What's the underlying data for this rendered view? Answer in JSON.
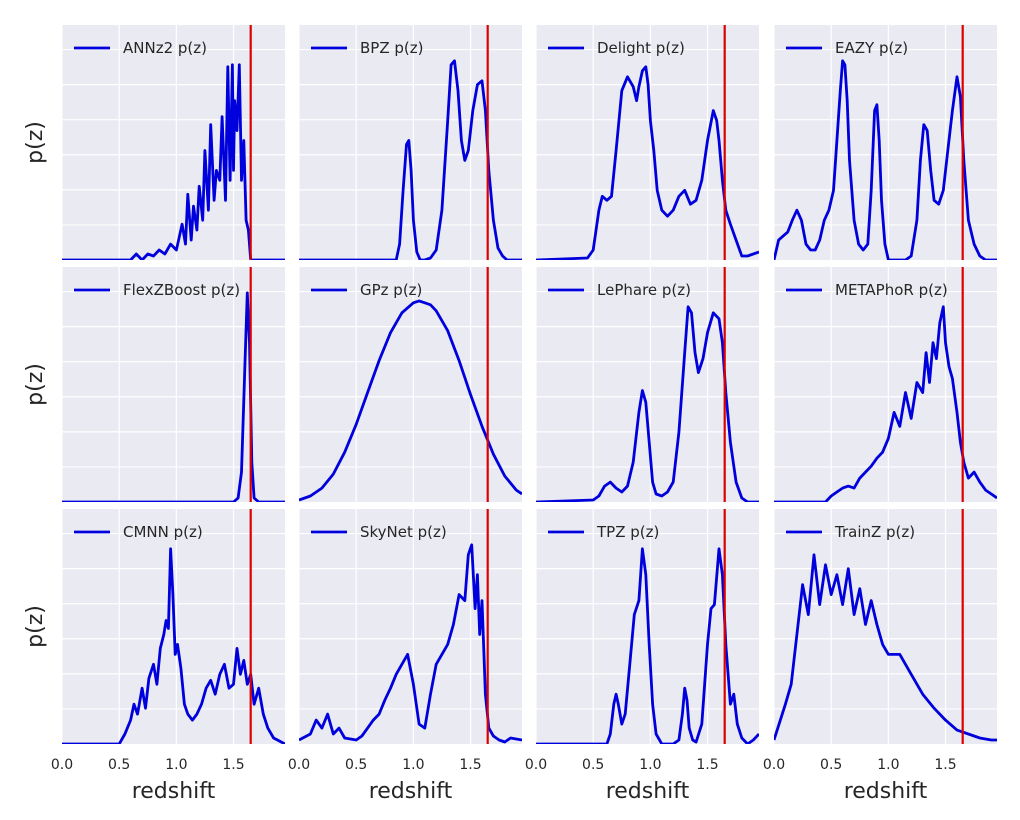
{
  "chart_data": [
    {
      "type": "line",
      "legend": "ANNz2 p(z)",
      "xlim": [
        0,
        1.95
      ],
      "z_true": 1.65,
      "x": [
        0,
        0.6,
        0.65,
        0.7,
        0.75,
        0.8,
        0.85,
        0.9,
        0.95,
        1.0,
        1.05,
        1.08,
        1.1,
        1.13,
        1.15,
        1.18,
        1.2,
        1.23,
        1.25,
        1.28,
        1.3,
        1.33,
        1.35,
        1.38,
        1.4,
        1.43,
        1.45,
        1.47,
        1.49,
        1.5,
        1.51,
        1.53,
        1.55,
        1.57,
        1.59,
        1.61,
        1.63,
        1.65,
        1.7,
        1.95
      ],
      "y": [
        0,
        0,
        0.03,
        0,
        0.03,
        0.02,
        0.05,
        0.03,
        0.08,
        0.05,
        0.18,
        0.08,
        0.33,
        0.1,
        0.27,
        0.15,
        0.37,
        0.2,
        0.55,
        0.25,
        0.68,
        0.3,
        0.45,
        0.4,
        0.72,
        0.3,
        0.97,
        0.4,
        0.98,
        0.45,
        0.8,
        0.65,
        0.98,
        0.4,
        0.6,
        0.2,
        0.15,
        0,
        0,
        0
      ]
    },
    {
      "type": "line",
      "legend": "BPZ p(z)",
      "xlim": [
        0,
        1.95
      ],
      "z_true": 1.65,
      "x": [
        0,
        0.85,
        0.88,
        0.91,
        0.94,
        0.96,
        0.98,
        1.0,
        1.03,
        1.06,
        1.1,
        1.15,
        1.2,
        1.25,
        1.3,
        1.33,
        1.36,
        1.39,
        1.42,
        1.45,
        1.48,
        1.52,
        1.56,
        1.6,
        1.63,
        1.66,
        1.7,
        1.74,
        1.78,
        1.82,
        1.95
      ],
      "y": [
        0,
        0,
        0.08,
        0.35,
        0.58,
        0.6,
        0.45,
        0.2,
        0.04,
        0,
        0,
        0.01,
        0.05,
        0.25,
        0.7,
        0.98,
        1.0,
        0.85,
        0.6,
        0.5,
        0.55,
        0.75,
        0.88,
        0.9,
        0.75,
        0.45,
        0.2,
        0.06,
        0.02,
        0,
        0
      ]
    },
    {
      "type": "line",
      "legend": "Delight p(z)",
      "xlim": [
        0,
        1.95
      ],
      "z_true": 1.65,
      "x": [
        0,
        0.45,
        0.5,
        0.55,
        0.58,
        0.62,
        0.66,
        0.7,
        0.75,
        0.8,
        0.85,
        0.88,
        0.9,
        0.93,
        0.96,
        0.98,
        1.0,
        1.03,
        1.06,
        1.1,
        1.15,
        1.2,
        1.25,
        1.3,
        1.35,
        1.4,
        1.45,
        1.5,
        1.55,
        1.58,
        1.6,
        1.63,
        1.66,
        1.7,
        1.75,
        1.8,
        1.85,
        1.95
      ],
      "y": [
        0,
        0.01,
        0.05,
        0.25,
        0.32,
        0.3,
        0.32,
        0.55,
        0.85,
        0.92,
        0.87,
        0.8,
        0.87,
        0.95,
        0.97,
        0.88,
        0.7,
        0.55,
        0.35,
        0.25,
        0.22,
        0.25,
        0.32,
        0.35,
        0.28,
        0.3,
        0.4,
        0.6,
        0.75,
        0.7,
        0.6,
        0.4,
        0.25,
        0.18,
        0.1,
        0.02,
        0.02,
        0.04
      ]
    },
    {
      "type": "line",
      "legend": "EAZY p(z)",
      "xlim": [
        0,
        1.95
      ],
      "z_true": 1.65,
      "x": [
        0,
        0.04,
        0.08,
        0.12,
        0.16,
        0.2,
        0.24,
        0.28,
        0.32,
        0.36,
        0.4,
        0.44,
        0.48,
        0.52,
        0.55,
        0.58,
        0.6,
        0.62,
        0.64,
        0.66,
        0.7,
        0.74,
        0.78,
        0.82,
        0.85,
        0.88,
        0.9,
        0.92,
        0.94,
        0.97,
        1.0,
        1.05,
        1.1,
        1.15,
        1.2,
        1.25,
        1.28,
        1.31,
        1.34,
        1.37,
        1.4,
        1.44,
        1.48,
        1.52,
        1.56,
        1.6,
        1.63,
        1.66,
        1.7,
        1.75,
        1.8,
        1.85,
        1.95
      ],
      "y": [
        0,
        0.1,
        0.12,
        0.14,
        0.2,
        0.25,
        0.2,
        0.08,
        0.05,
        0.05,
        0.1,
        0.2,
        0.25,
        0.35,
        0.6,
        0.85,
        1.0,
        0.98,
        0.8,
        0.5,
        0.2,
        0.08,
        0.05,
        0.08,
        0.35,
        0.75,
        0.78,
        0.6,
        0.3,
        0.08,
        0,
        0,
        0,
        0,
        0.02,
        0.2,
        0.5,
        0.68,
        0.65,
        0.45,
        0.3,
        0.28,
        0.35,
        0.55,
        0.75,
        0.92,
        0.82,
        0.5,
        0.2,
        0.08,
        0.02,
        0,
        0
      ]
    },
    {
      "type": "line",
      "legend": "FlexZBoost p(z)",
      "xlim": [
        0,
        1.95
      ],
      "z_true": 1.65,
      "x": [
        0,
        1.5,
        1.54,
        1.57,
        1.6,
        1.62,
        1.64,
        1.66,
        1.68,
        1.72,
        1.95
      ],
      "y": [
        0,
        0,
        0.02,
        0.15,
        0.7,
        1.05,
        0.8,
        0.2,
        0.02,
        0,
        0
      ]
    },
    {
      "type": "line",
      "legend": "GPz p(z)",
      "xlim": [
        0,
        1.95
      ],
      "z_true": 1.65,
      "x": [
        0,
        0.1,
        0.2,
        0.3,
        0.4,
        0.5,
        0.6,
        0.7,
        0.8,
        0.9,
        1.0,
        1.05,
        1.1,
        1.15,
        1.2,
        1.3,
        1.4,
        1.5,
        1.6,
        1.7,
        1.8,
        1.9,
        1.95
      ],
      "y": [
        0.01,
        0.03,
        0.07,
        0.14,
        0.25,
        0.39,
        0.55,
        0.71,
        0.85,
        0.95,
        1.0,
        1.01,
        1.0,
        0.99,
        0.96,
        0.86,
        0.71,
        0.54,
        0.38,
        0.24,
        0.13,
        0.06,
        0.04
      ]
    },
    {
      "type": "line",
      "legend": "LePhare p(z)",
      "xlim": [
        0,
        1.95
      ],
      "z_true": 1.65,
      "x": [
        0,
        0.5,
        0.55,
        0.6,
        0.65,
        0.7,
        0.75,
        0.8,
        0.85,
        0.9,
        0.93,
        0.96,
        0.99,
        1.02,
        1.05,
        1.1,
        1.15,
        1.2,
        1.25,
        1.3,
        1.33,
        1.36,
        1.39,
        1.42,
        1.46,
        1.5,
        1.55,
        1.6,
        1.63,
        1.66,
        1.7,
        1.75,
        1.8,
        1.85,
        1.95
      ],
      "y": [
        0,
        0.01,
        0.03,
        0.08,
        0.1,
        0.07,
        0.05,
        0.08,
        0.2,
        0.45,
        0.56,
        0.5,
        0.3,
        0.1,
        0.04,
        0.03,
        0.05,
        0.1,
        0.35,
        0.75,
        0.98,
        0.95,
        0.75,
        0.65,
        0.72,
        0.85,
        0.95,
        0.92,
        0.8,
        0.55,
        0.3,
        0.1,
        0.02,
        0,
        0
      ]
    },
    {
      "type": "line",
      "legend": "METAPhoR p(z)",
      "xlim": [
        0,
        1.95
      ],
      "z_true": 1.65,
      "x": [
        0,
        0.45,
        0.5,
        0.55,
        0.6,
        0.65,
        0.7,
        0.75,
        0.8,
        0.85,
        0.9,
        0.95,
        1.0,
        1.05,
        1.1,
        1.15,
        1.2,
        1.25,
        1.3,
        1.33,
        1.36,
        1.39,
        1.42,
        1.45,
        1.48,
        1.5,
        1.53,
        1.56,
        1.6,
        1.63,
        1.66,
        1.7,
        1.75,
        1.8,
        1.85,
        1.9,
        1.95
      ],
      "y": [
        0,
        0,
        0.03,
        0.05,
        0.07,
        0.08,
        0.07,
        0.12,
        0.15,
        0.18,
        0.22,
        0.25,
        0.32,
        0.45,
        0.38,
        0.55,
        0.42,
        0.6,
        0.55,
        0.75,
        0.6,
        0.8,
        0.72,
        0.9,
        0.98,
        0.8,
        0.68,
        0.62,
        0.45,
        0.3,
        0.2,
        0.12,
        0.15,
        0.1,
        0.06,
        0.04,
        0.02
      ]
    },
    {
      "type": "line",
      "legend": "CMNN p(z)",
      "xlim": [
        0,
        1.95
      ],
      "z_true": 1.65,
      "x": [
        0,
        0.5,
        0.55,
        0.6,
        0.63,
        0.66,
        0.7,
        0.73,
        0.76,
        0.8,
        0.83,
        0.86,
        0.89,
        0.91,
        0.93,
        0.95,
        0.97,
        0.99,
        1.01,
        1.04,
        1.07,
        1.1,
        1.14,
        1.18,
        1.22,
        1.26,
        1.3,
        1.34,
        1.38,
        1.42,
        1.46,
        1.5,
        1.53,
        1.56,
        1.59,
        1.62,
        1.65,
        1.68,
        1.72,
        1.76,
        1.8,
        1.85,
        1.95
      ],
      "y": [
        0,
        0,
        0.05,
        0.12,
        0.2,
        0.15,
        0.28,
        0.18,
        0.33,
        0.4,
        0.3,
        0.48,
        0.55,
        0.62,
        0.58,
        0.98,
        0.75,
        0.45,
        0.5,
        0.38,
        0.2,
        0.15,
        0.12,
        0.15,
        0.2,
        0.28,
        0.32,
        0.25,
        0.35,
        0.4,
        0.28,
        0.3,
        0.48,
        0.35,
        0.42,
        0.3,
        0.35,
        0.2,
        0.28,
        0.15,
        0.08,
        0.03,
        0
      ]
    },
    {
      "type": "line",
      "legend": "SkyNet p(z)",
      "xlim": [
        0,
        1.95
      ],
      "z_true": 1.65,
      "x": [
        0,
        0.1,
        0.15,
        0.2,
        0.25,
        0.3,
        0.35,
        0.4,
        0.5,
        0.55,
        0.6,
        0.65,
        0.7,
        0.75,
        0.8,
        0.85,
        0.9,
        0.95,
        1.0,
        1.05,
        1.1,
        1.15,
        1.2,
        1.25,
        1.3,
        1.35,
        1.4,
        1.45,
        1.48,
        1.51,
        1.54,
        1.56,
        1.58,
        1.6,
        1.63,
        1.66,
        1.7,
        1.75,
        1.8,
        1.85,
        1.95
      ],
      "y": [
        0.02,
        0.05,
        0.12,
        0.08,
        0.15,
        0.05,
        0.08,
        0.03,
        0.02,
        0.04,
        0.08,
        0.12,
        0.15,
        0.22,
        0.28,
        0.35,
        0.4,
        0.45,
        0.3,
        0.1,
        0.08,
        0.25,
        0.4,
        0.45,
        0.5,
        0.6,
        0.75,
        0.72,
        0.95,
        1.0,
        0.68,
        0.85,
        0.55,
        0.72,
        0.25,
        0.08,
        0.04,
        0.02,
        0.01,
        0.03,
        0.02
      ]
    },
    {
      "type": "line",
      "legend": "TPZ p(z)",
      "xlim": [
        0,
        1.95
      ],
      "z_true": 1.65,
      "x": [
        0,
        0.62,
        0.65,
        0.68,
        0.7,
        0.72,
        0.75,
        0.78,
        0.82,
        0.86,
        0.9,
        0.93,
        0.96,
        0.99,
        1.02,
        1.05,
        1.1,
        1.15,
        1.2,
        1.25,
        1.28,
        1.3,
        1.32,
        1.34,
        1.37,
        1.4,
        1.45,
        1.5,
        1.53,
        1.56,
        1.6,
        1.63,
        1.66,
        1.7,
        1.73,
        1.76,
        1.8,
        1.85,
        1.9,
        1.95
      ],
      "y": [
        0,
        0,
        0.05,
        0.2,
        0.25,
        0.2,
        0.1,
        0.15,
        0.4,
        0.65,
        0.72,
        0.98,
        0.85,
        0.5,
        0.2,
        0.05,
        0,
        0,
        0,
        0.02,
        0.15,
        0.28,
        0.22,
        0.08,
        0.02,
        0.01,
        0.1,
        0.5,
        0.68,
        0.7,
        0.98,
        0.85,
        0.5,
        0.2,
        0.25,
        0.1,
        0.03,
        0,
        0.02,
        0.05
      ]
    },
    {
      "type": "line",
      "legend": "TrainZ p(z)",
      "xlim": [
        0,
        1.95
      ],
      "z_true": 1.65,
      "x": [
        0,
        0.1,
        0.15,
        0.2,
        0.25,
        0.3,
        0.35,
        0.4,
        0.45,
        0.5,
        0.55,
        0.6,
        0.65,
        0.7,
        0.75,
        0.8,
        0.85,
        0.9,
        0.95,
        1.0,
        1.1,
        1.2,
        1.3,
        1.4,
        1.5,
        1.6,
        1.7,
        1.8,
        1.9,
        1.95
      ],
      "y": [
        0.02,
        0.2,
        0.3,
        0.55,
        0.8,
        0.65,
        0.95,
        0.7,
        0.9,
        0.75,
        0.85,
        0.7,
        0.88,
        0.65,
        0.78,
        0.6,
        0.72,
        0.6,
        0.5,
        0.45,
        0.45,
        0.35,
        0.25,
        0.18,
        0.12,
        0.07,
        0.05,
        0.03,
        0.02,
        0.02
      ]
    }
  ],
  "axes": {
    "ylabel": "p(z)",
    "xlabel": "redshift",
    "xticks": [
      "0.0",
      "0.5",
      "1.0",
      "1.5"
    ],
    "xtick_values": [
      0,
      0.5,
      1.0,
      1.5
    ],
    "line_color": "#0000dd",
    "true_z_color": "#dd0000",
    "background": "#eaeaf2",
    "grid_color": "#ffffff"
  }
}
